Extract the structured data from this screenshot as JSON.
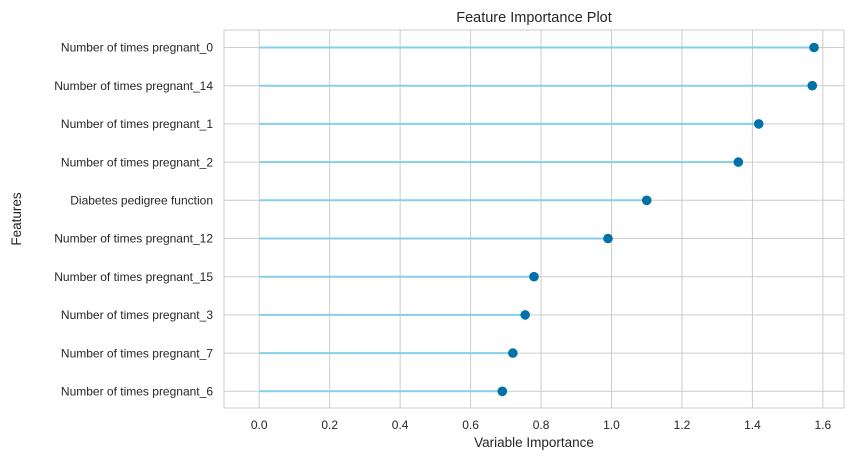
{
  "chart_data": {
    "type": "lollipop",
    "title": "Feature Importance Plot",
    "xlabel": "Variable Importance",
    "ylabel": "Features",
    "xlim": [
      -0.1,
      1.66
    ],
    "xticks": [
      0.0,
      0.2,
      0.4,
      0.6,
      0.8,
      1.0,
      1.2,
      1.4,
      1.6
    ],
    "xtick_labels": [
      "0.0",
      "0.2",
      "0.4",
      "0.6",
      "0.8",
      "1.0",
      "1.2",
      "1.4",
      "1.6"
    ],
    "grid": true,
    "categories": [
      "Number of times pregnant_0",
      "Number of times pregnant_14",
      "Number of times pregnant_1",
      "Number of times pregnant_2",
      "Diabetes pedigree function",
      "Number of times pregnant_12",
      "Number of times pregnant_15",
      "Number of times pregnant_3",
      "Number of times pregnant_7",
      "Number of times pregnant_6"
    ],
    "values": [
      1.575,
      1.57,
      1.418,
      1.36,
      1.1,
      0.99,
      0.78,
      0.755,
      0.72,
      0.69
    ],
    "colors": {
      "stem": "#87ceeb",
      "marker": "#0072a8",
      "grid": "#cccccc",
      "frame": "#cccccc"
    }
  }
}
